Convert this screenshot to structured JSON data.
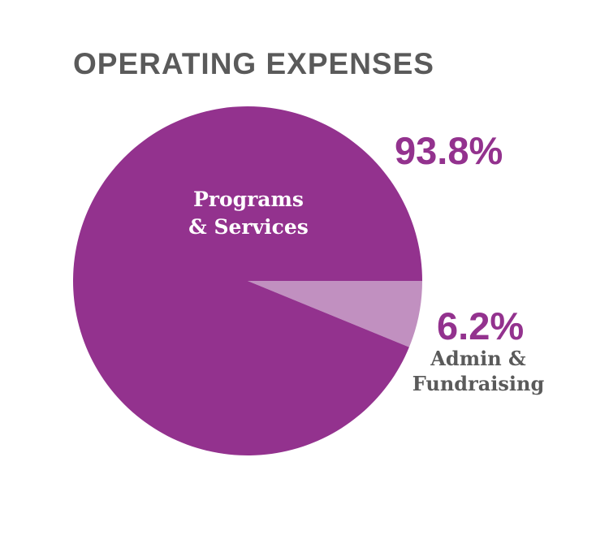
{
  "chart_data": {
    "type": "pie",
    "title": "OPERATING EXPENSES",
    "slices": [
      {
        "name": "Programs & Services",
        "label_lines": [
          "Programs",
          "& Services"
        ],
        "value": 93.8,
        "value_label": "93.8%",
        "color": "#93328e"
      },
      {
        "name": "Admin & Fundraising",
        "label_lines": [
          "Admin &",
          "Fundraising"
        ],
        "value": 6.2,
        "value_label": "6.2%",
        "color": "#c190c0"
      }
    ],
    "start_angle": "3 o'clock, clockwise",
    "legend": "none"
  },
  "colors": {
    "title": "#5a5a5a",
    "percent_text": "#93328e",
    "outer_label_text": "#5a5a5a",
    "inner_label_text": "#ffffff"
  }
}
